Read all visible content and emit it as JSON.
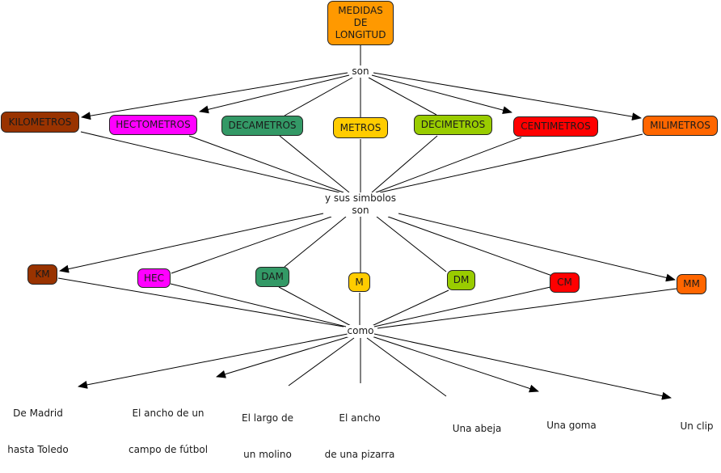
{
  "root": {
    "label_lines": [
      "MEDIDAS",
      "DE",
      "LONGITUD"
    ],
    "color": "#ff9900"
  },
  "link_1": "son",
  "units": [
    {
      "label": "KILOMETROS",
      "color": "#993300"
    },
    {
      "label": "HECTOMETROS",
      "color": "#ff00ff"
    },
    {
      "label": "DECAMETROS",
      "color": "#339966"
    },
    {
      "label": "METROS",
      "color": "#ffcc00"
    },
    {
      "label": "DECIMETROS",
      "color": "#99cc00"
    },
    {
      "label": "CENTIMETROS",
      "color": "#ff0000"
    },
    {
      "label": "MILIMETROS",
      "color": "#ff6600"
    }
  ],
  "link_2": [
    "y sus simbolos",
    "son"
  ],
  "symbols": [
    {
      "label": "KM",
      "color": "#993300"
    },
    {
      "label": "HEC",
      "color": "#ff00ff"
    },
    {
      "label": "DAM",
      "color": "#339966"
    },
    {
      "label": "M",
      "color": "#ffcc00"
    },
    {
      "label": "DM",
      "color": "#99cc00"
    },
    {
      "label": "CM",
      "color": "#ff0000"
    },
    {
      "label": "MM",
      "color": "#ff6600"
    }
  ],
  "link_3": "como",
  "examples": [
    {
      "lines": [
        "De Madrid",
        "hasta Toledo"
      ]
    },
    {
      "lines": [
        "El ancho de un",
        "campo de fútbol"
      ]
    },
    {
      "lines": [
        "El largo de",
        "un molino"
      ]
    },
    {
      "lines": [
        "El ancho",
        "de una pizarra"
      ]
    },
    {
      "lines": [
        "Una abeja"
      ]
    },
    {
      "lines": [
        "Una goma"
      ]
    },
    {
      "lines": [
        "Un clip"
      ]
    }
  ]
}
